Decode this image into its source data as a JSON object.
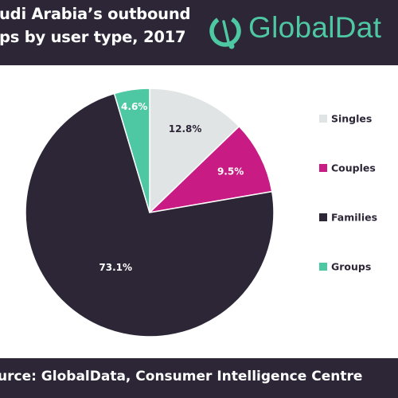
{
  "header": {
    "title_line1": "udi Arabia’s outbound",
    "title_line2": "ps by user type, 2017",
    "logo_text": "GlobalDat"
  },
  "footer": {
    "source": "urce:  GlobalData, Consumer Intelligence Centre"
  },
  "colors": {
    "band": "#2c2637",
    "brand": "#4ec8a3",
    "singles": "#e1e4e5",
    "couples": "#c81b83",
    "families": "#2c2637",
    "groups": "#4ec8a3"
  },
  "chart_data": {
    "type": "pie",
    "start": "12 o'clock",
    "direction": "clockwise",
    "legend_position": "right",
    "slices": [
      {
        "label": "Singles",
        "value": 12.8,
        "value_label": "12.8%",
        "color": "#e1e4e5"
      },
      {
        "label": "Couples",
        "value": 9.5,
        "value_label": "9.5%",
        "color": "#c81b83"
      },
      {
        "label": "Families",
        "value": 73.1,
        "value_label": "73.1%",
        "color": "#2c2637"
      },
      {
        "label": "Groups",
        "value": 4.6,
        "value_label": "4.6%",
        "color": "#4ec8a3"
      }
    ]
  }
}
